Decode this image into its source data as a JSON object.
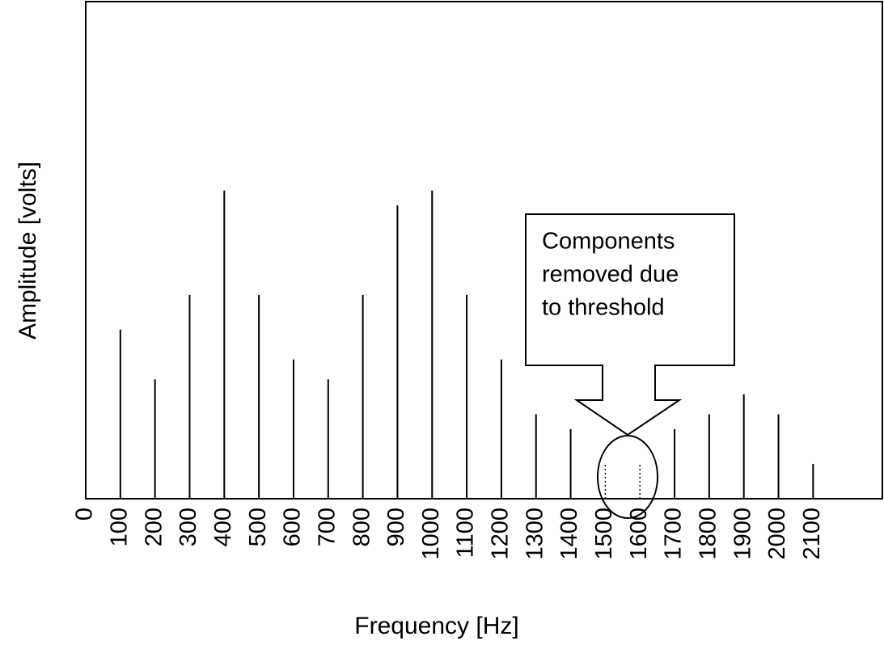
{
  "chart_data": {
    "type": "stem",
    "x_label": "Frequency [Hz]",
    "y_label": "Amplitude [volts]",
    "x": [
      100,
      200,
      300,
      400,
      500,
      600,
      700,
      800,
      900,
      1000,
      1100,
      1200,
      1300,
      1400,
      1500,
      1600,
      1700,
      1800,
      1900,
      2000,
      2100
    ],
    "values": [
      3.4,
      2.4,
      4.1,
      6.2,
      4.1,
      2.8,
      2.4,
      4.1,
      5.9,
      6.2,
      4.1,
      2.8,
      1.7,
      1.4,
      0.7,
      0.7,
      1.4,
      1.7,
      2.1,
      1.7,
      0.7
    ],
    "line_styles": [
      "solid",
      "solid",
      "solid",
      "solid",
      "solid",
      "solid",
      "solid",
      "solid",
      "solid",
      "solid",
      "solid",
      "solid",
      "solid",
      "solid",
      "dotted",
      "dotted",
      "solid",
      "solid",
      "solid",
      "solid",
      "solid"
    ],
    "color": "#000000",
    "xlim": [
      0,
      2300
    ],
    "ylim": [
      0,
      10
    ],
    "xticks": [
      0,
      100,
      200,
      300,
      400,
      500,
      600,
      700,
      800,
      900,
      1000,
      1100,
      1200,
      1300,
      1400,
      1500,
      1600,
      1700,
      1800,
      1900,
      2000,
      2100
    ],
    "annotation": [
      "Components",
      "removed due",
      "to threshold"
    ]
  }
}
